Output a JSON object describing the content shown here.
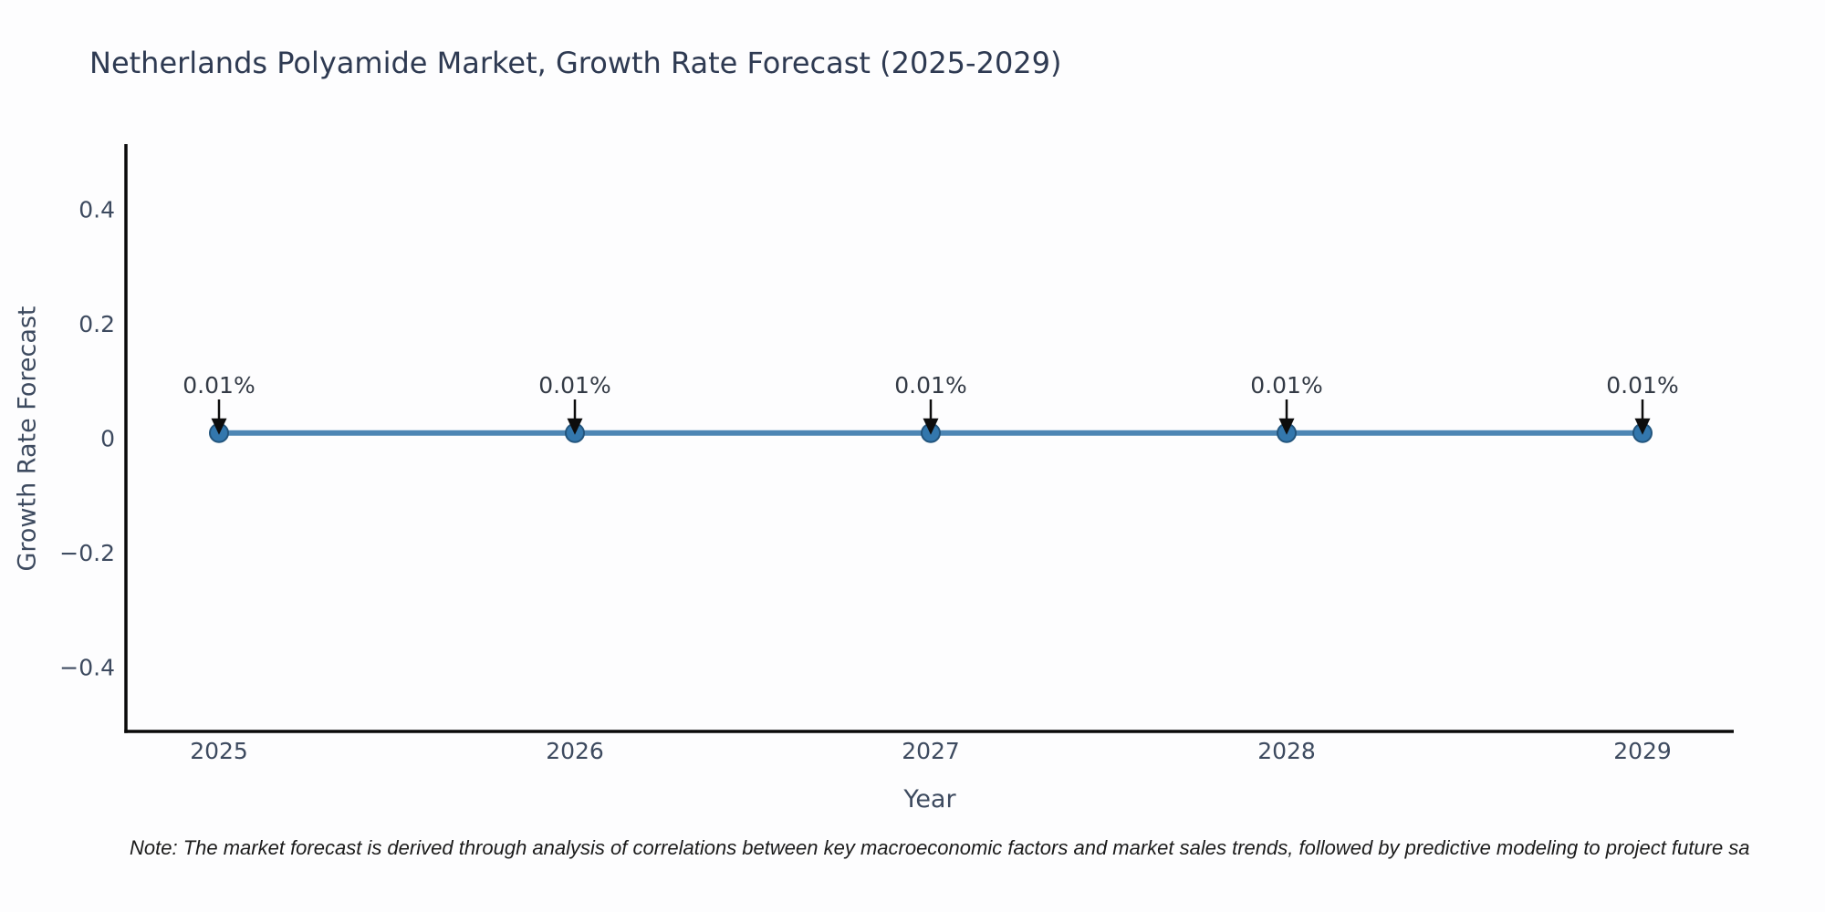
{
  "page": {
    "background": "#fdfdfe"
  },
  "title": "Netherlands Polyamide Market, Growth Rate Forecast (2025-2029)",
  "note": "Note: The market forecast is derived through analysis of correlations between key macroeconomic factors and market sales trends, followed by predictive modeling to project future sa",
  "chart_data": {
    "type": "line",
    "title": "Netherlands Polyamide Market, Growth Rate Forecast (2025-2029)",
    "xlabel": "Year",
    "ylabel": "Growth Rate Forecast",
    "x": [
      2025,
      2026,
      2027,
      2028,
      2029
    ],
    "series": [
      {
        "name": "Growth Rate Forecast",
        "values": [
          0.01,
          0.01,
          0.01,
          0.01,
          0.01
        ]
      }
    ],
    "data_labels": [
      "0.01%",
      "0.01%",
      "0.01%",
      "0.01%",
      "0.01%"
    ],
    "yticks": [
      0.4,
      0.2,
      0,
      -0.2,
      -0.4
    ],
    "ylim": [
      -0.512,
      0.512
    ],
    "grid": false,
    "legend": "none",
    "annotation_style": "arrow-down",
    "colors": {
      "line": "#4d86b4",
      "marker_fill": "#3377ad",
      "marker_edge": "#23557d",
      "arrow": "#0d0d0d",
      "axis": "#0a0a0a",
      "title_text": "#2e3a52",
      "tick_text": "#3d4a5f",
      "label_text": "#3d4a5f",
      "annotation_text": "#333a45",
      "note_text": "#1b1b1b"
    }
  }
}
